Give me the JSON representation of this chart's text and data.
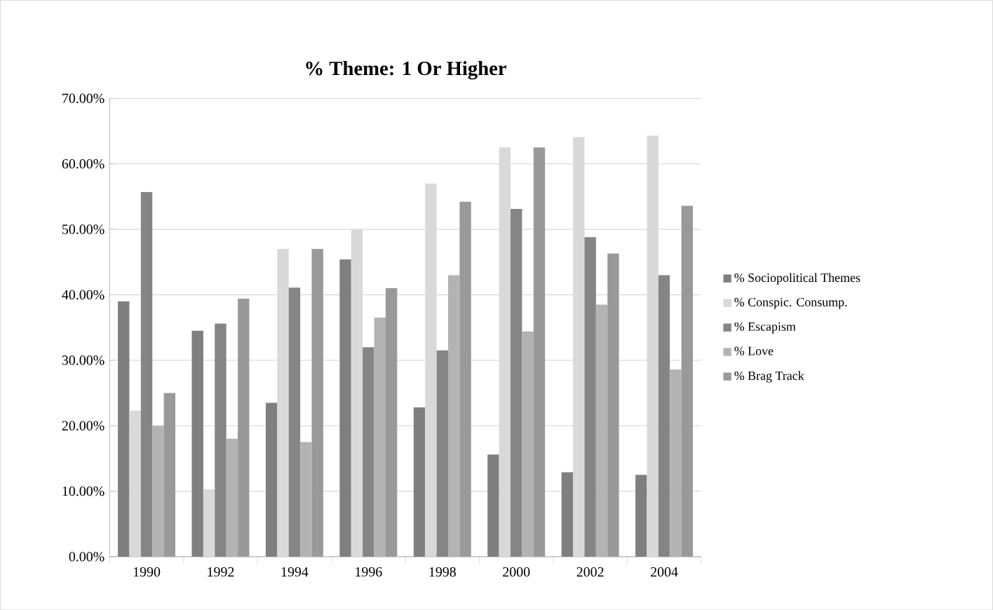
{
  "chart_data": {
    "type": "bar",
    "title": "% Theme: 1 Or Higher",
    "categories": [
      "1990",
      "1992",
      "1994",
      "1996",
      "1998",
      "2000",
      "2002",
      "2004"
    ],
    "series": [
      {
        "name": "% Sociopolitical Themes",
        "color": "#7f7f7f",
        "values": [
          39.0,
          34.5,
          23.5,
          45.4,
          22.8,
          15.6,
          12.9,
          12.5
        ]
      },
      {
        "name": "% Conspic. Consump.",
        "color": "#d9d9d9",
        "values": [
          22.3,
          10.3,
          47.0,
          50.0,
          57.0,
          62.5,
          64.1,
          64.3
        ]
      },
      {
        "name": "% Escapism",
        "color": "#858585",
        "values": [
          55.7,
          35.6,
          41.1,
          32.0,
          31.5,
          53.1,
          48.8,
          43.0
        ]
      },
      {
        "name": "% Love",
        "color": "#b3b3b3",
        "values": [
          20.0,
          18.0,
          17.5,
          36.5,
          43.0,
          34.4,
          38.5,
          28.6
        ]
      },
      {
        "name": "% Brag Track",
        "color": "#999999",
        "values": [
          25.0,
          39.4,
          47.0,
          41.0,
          54.2,
          62.5,
          46.3,
          53.6
        ]
      }
    ],
    "ylim": [
      0,
      70
    ],
    "yticks": [
      {
        "value": 0,
        "label": "0.00%"
      },
      {
        "value": 10,
        "label": "10.00%"
      },
      {
        "value": 20,
        "label": "20.00%"
      },
      {
        "value": 30,
        "label": "30.00%"
      },
      {
        "value": 40,
        "label": "40.00%"
      },
      {
        "value": 50,
        "label": "50.00%"
      },
      {
        "value": 60,
        "label": "60.00%"
      },
      {
        "value": 70,
        "label": "70.00%"
      }
    ],
    "grid": "y",
    "legend": "right"
  }
}
